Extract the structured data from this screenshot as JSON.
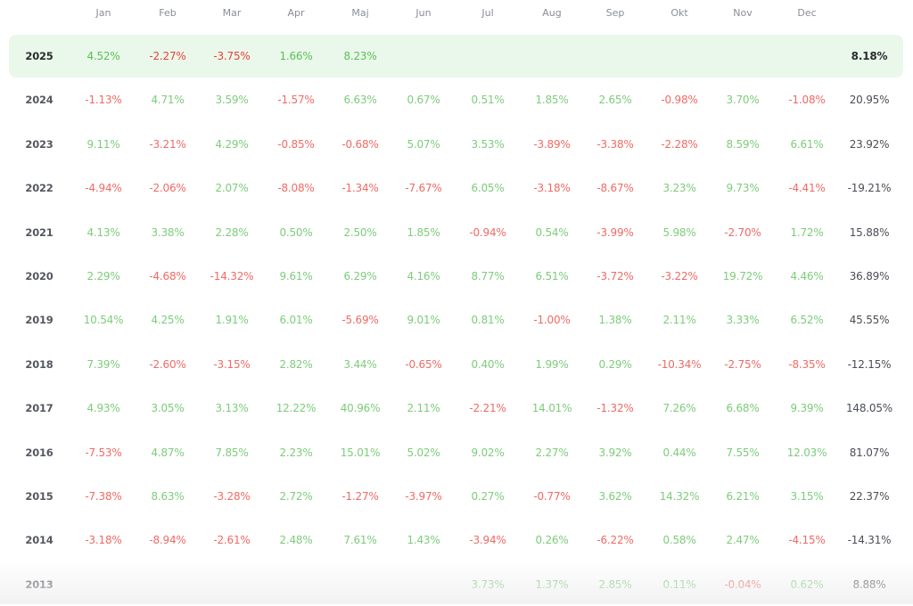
{
  "table": {
    "headers": [
      "Jan",
      "Feb",
      "Mar",
      "Apr",
      "Maj",
      "Jun",
      "Jul",
      "Aug",
      "Sep",
      "Okt",
      "Nov",
      "Dec"
    ],
    "rows": [
      {
        "year": "2025",
        "current": true,
        "months": [
          "4.52%",
          "-2.27%",
          "-3.75%",
          "1.66%",
          "8.23%",
          "",
          "",
          "",
          "",
          "",
          "",
          ""
        ],
        "total": "8.18%"
      },
      {
        "year": "2024",
        "months": [
          "-1.13%",
          "4.71%",
          "3.59%",
          "-1.57%",
          "6.63%",
          "0.67%",
          "0.51%",
          "1.85%",
          "2.65%",
          "-0.98%",
          "3.70%",
          "-1.08%"
        ],
        "total": "20.95%"
      },
      {
        "year": "2023",
        "months": [
          "9.11%",
          "-3.21%",
          "4.29%",
          "-0.85%",
          "-0.68%",
          "5.07%",
          "3.53%",
          "-3.89%",
          "-3.38%",
          "-2.28%",
          "8.59%",
          "6.61%"
        ],
        "total": "23.92%"
      },
      {
        "year": "2022",
        "months": [
          "-4.94%",
          "-2.06%",
          "2.07%",
          "-8.08%",
          "-1.34%",
          "-7.67%",
          "6.05%",
          "-3.18%",
          "-8.67%",
          "3.23%",
          "9.73%",
          "-4.41%"
        ],
        "total": "-19.21%"
      },
      {
        "year": "2021",
        "months": [
          "4.13%",
          "3.38%",
          "2.28%",
          "0.50%",
          "2.50%",
          "1.85%",
          "-0.94%",
          "0.54%",
          "-3.99%",
          "5.98%",
          "-2.70%",
          "1.72%"
        ],
        "total": "15.88%"
      },
      {
        "year": "2020",
        "months": [
          "2.29%",
          "-4.68%",
          "-14.32%",
          "9.61%",
          "6.29%",
          "4.16%",
          "8.77%",
          "6.51%",
          "-3.72%",
          "-3.22%",
          "19.72%",
          "4.46%"
        ],
        "total": "36.89%"
      },
      {
        "year": "2019",
        "months": [
          "10.54%",
          "4.25%",
          "1.91%",
          "6.01%",
          "-5.69%",
          "9.01%",
          "0.81%",
          "-1.00%",
          "1.38%",
          "2.11%",
          "3.33%",
          "6.52%"
        ],
        "total": "45.55%"
      },
      {
        "year": "2018",
        "months": [
          "7.39%",
          "-2.60%",
          "-3.15%",
          "2.82%",
          "3.44%",
          "-0.65%",
          "0.40%",
          "1.99%",
          "0.29%",
          "-10.34%",
          "-2.75%",
          "-8.35%"
        ],
        "total": "-12.15%"
      },
      {
        "year": "2017",
        "months": [
          "4.93%",
          "3.05%",
          "3.13%",
          "12.22%",
          "40.96%",
          "2.11%",
          "-2.21%",
          "14.01%",
          "-1.32%",
          "7.26%",
          "6.68%",
          "9.39%"
        ],
        "total": "148.05%"
      },
      {
        "year": "2016",
        "months": [
          "-7.53%",
          "4.87%",
          "7.85%",
          "2.23%",
          "15.01%",
          "5.02%",
          "9.02%",
          "2.27%",
          "3.92%",
          "0.44%",
          "7.55%",
          "12.03%"
        ],
        "total": "81.07%"
      },
      {
        "year": "2015",
        "months": [
          "-7.38%",
          "8.63%",
          "-3.28%",
          "2.72%",
          "-1.27%",
          "-3.97%",
          "0.27%",
          "-0.77%",
          "3.62%",
          "14.32%",
          "6.21%",
          "3.15%"
        ],
        "total": "22.37%"
      },
      {
        "year": "2014",
        "months": [
          "-3.18%",
          "-8.94%",
          "-2.61%",
          "2.48%",
          "7.61%",
          "1.43%",
          "-3.94%",
          "0.26%",
          "-6.22%",
          "0.58%",
          "2.47%",
          "-4.15%"
        ],
        "total": "-14.31%"
      },
      {
        "year": "2013",
        "months": [
          "",
          "",
          "",
          "",
          "",
          "",
          "3.73%",
          "1.37%",
          "2.85%",
          "0.11%",
          "-0.04%",
          "0.62%"
        ],
        "total": "8.88%"
      }
    ]
  },
  "colors": {
    "positive": "#7dcc7a",
    "negative": "#ef6b65",
    "current_row_bg": "#e9f8ea",
    "header_text": "#8a8d9a",
    "total_text": "#4b4e55"
  }
}
